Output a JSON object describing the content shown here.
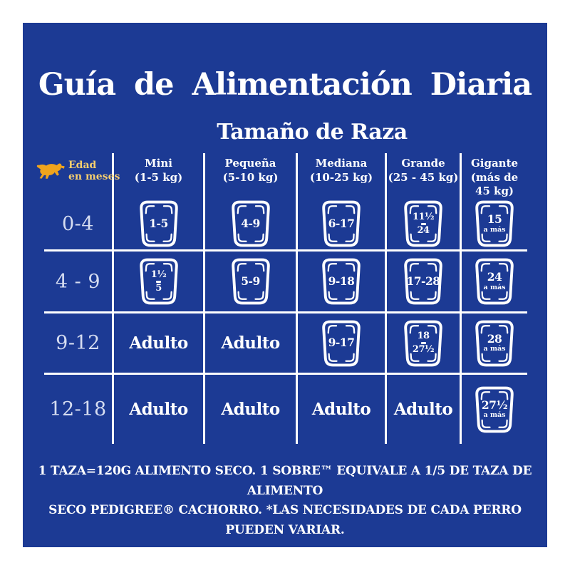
{
  "colors": {
    "background": "#ffffff",
    "panel_blue": "#1c3a94",
    "dog_gold": "#f0a41d",
    "label_gold": "#f5ce6e",
    "text_white": "#ffffff"
  },
  "title": "Guía de Alimentación Diaria",
  "subtitle": "Tamaño de Raza",
  "corner": {
    "line1": "Edad",
    "line2": "en meses"
  },
  "footer": {
    "line1": "1 TAZA=120G ALIMENTO SECO. 1 SOBRE™ EQUIVALE A 1/5 DE TAZA DE ALIMENTO",
    "line2": "SECO PEDIGREE® CACHORRO. *LAS NECESIDADES DE CADA PERRO PUEDEN VARIAR."
  },
  "chart_data": {
    "type": "table",
    "title": "Guía de Alimentación Diaria",
    "subtitle": "Tamaño de Raza",
    "row_axis": "Edad en meses",
    "columns": [
      {
        "name": "Mini",
        "range": "(1-5 kg)"
      },
      {
        "name": "Pequeña",
        "range": "(5-10 kg)"
      },
      {
        "name": "Mediana",
        "range": "(10-25 kg)"
      },
      {
        "name": "Grande",
        "range": "(25 - 45 kg)"
      },
      {
        "name": "Gigante",
        "range": "(más de 45 kg)"
      }
    ],
    "rows": [
      {
        "age": "0-4",
        "cells": [
          {
            "kind": "cup",
            "lines": [
              {
                "style": "big",
                "text": "1-5"
              }
            ]
          },
          {
            "kind": "cup",
            "lines": [
              {
                "style": "big",
                "text": "4-9"
              }
            ]
          },
          {
            "kind": "cup",
            "lines": [
              {
                "style": "big",
                "text": "6-17"
              }
            ]
          },
          {
            "kind": "cup",
            "lines": [
              {
                "style": "big",
                "text": "11½"
              },
              {
                "style": "dash",
                "text": ""
              },
              {
                "style": "big",
                "text": "24"
              }
            ]
          },
          {
            "kind": "cup",
            "lines": [
              {
                "style": "big",
                "text": "15"
              },
              {
                "style": "small",
                "text": "a más"
              }
            ]
          }
        ]
      },
      {
        "age": "4 - 9",
        "cells": [
          {
            "kind": "cup",
            "lines": [
              {
                "style": "big",
                "text": "1½"
              },
              {
                "style": "dash",
                "text": ""
              },
              {
                "style": "big",
                "text": "5"
              }
            ]
          },
          {
            "kind": "cup",
            "lines": [
              {
                "style": "big",
                "text": "5-9"
              }
            ]
          },
          {
            "kind": "cup",
            "lines": [
              {
                "style": "big",
                "text": "9-18"
              }
            ]
          },
          {
            "kind": "cup",
            "lines": [
              {
                "style": "big",
                "text": "17-28"
              }
            ]
          },
          {
            "kind": "cup",
            "lines": [
              {
                "style": "big",
                "text": "24"
              },
              {
                "style": "small",
                "text": "a más"
              }
            ]
          }
        ]
      },
      {
        "age": "9-12",
        "cells": [
          {
            "kind": "adult",
            "text": "Adulto"
          },
          {
            "kind": "adult",
            "text": "Adulto"
          },
          {
            "kind": "cup",
            "lines": [
              {
                "style": "big",
                "text": "9-17"
              }
            ]
          },
          {
            "kind": "cup",
            "lines": [
              {
                "style": "big",
                "text": "18"
              },
              {
                "style": "dash",
                "text": ""
              },
              {
                "style": "big",
                "text": "27½"
              }
            ]
          },
          {
            "kind": "cup",
            "lines": [
              {
                "style": "big",
                "text": "28"
              },
              {
                "style": "small",
                "text": "a más"
              }
            ]
          }
        ]
      },
      {
        "age": "12-18",
        "cells": [
          {
            "kind": "adult",
            "text": "Adulto"
          },
          {
            "kind": "adult",
            "text": "Adulto"
          },
          {
            "kind": "adult",
            "text": "Adulto"
          },
          {
            "kind": "adult",
            "text": "Adulto"
          },
          {
            "kind": "cup",
            "lines": [
              {
                "style": "big",
                "text": "27½"
              },
              {
                "style": "small",
                "text": "a más"
              }
            ]
          }
        ]
      }
    ]
  }
}
